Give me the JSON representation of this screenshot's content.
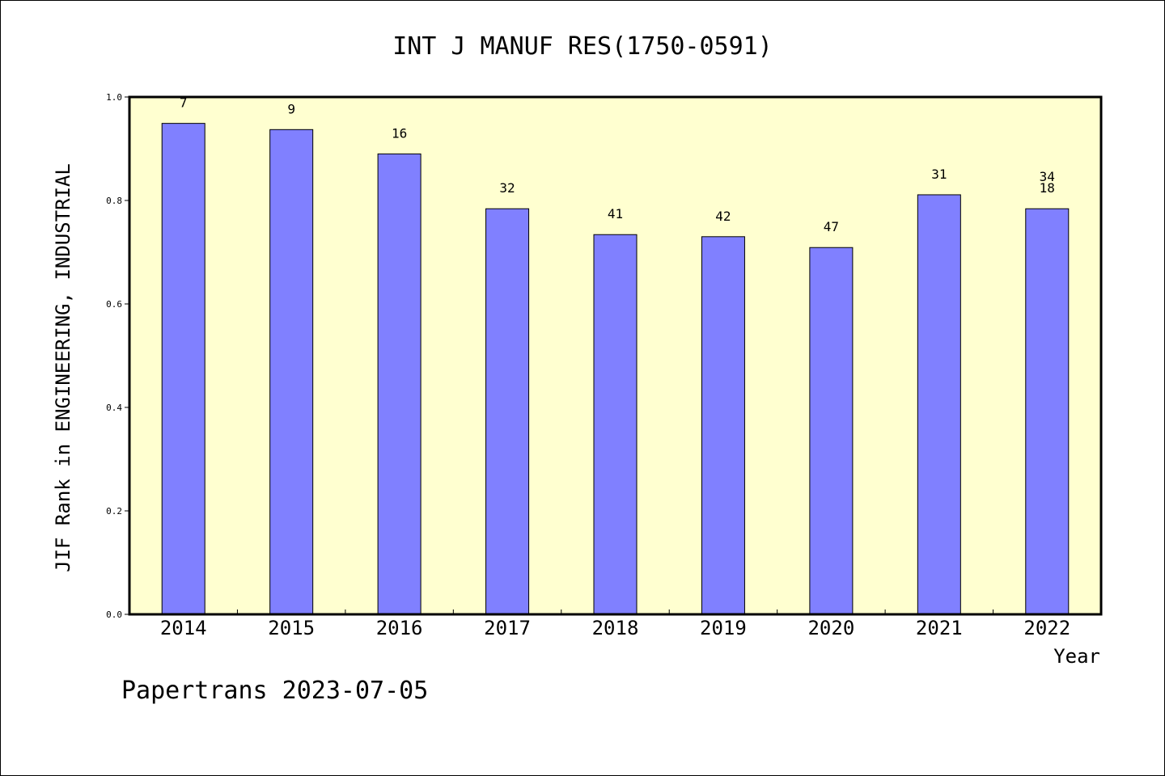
{
  "chart_data": {
    "type": "bar",
    "title": "INT J MANUF RES(1750-0591)",
    "xlabel": "Year",
    "ylabel": "JIF Rank in ENGINEERING, INDUSTRIAL",
    "ylim": [
      0,
      1.0
    ],
    "yticks": [
      "0.0",
      "0.2",
      "0.4",
      "0.6",
      "0.8",
      "1.0"
    ],
    "categories": [
      "2014",
      "2015",
      "2016",
      "2017",
      "2018",
      "2019",
      "2020",
      "2021",
      "2022"
    ],
    "values": [
      0.949,
      0.937,
      0.89,
      0.784,
      0.734,
      0.73,
      0.709,
      0.811,
      0.784
    ],
    "data_labels": [
      "7",
      "9",
      "16",
      "32",
      "41",
      "42",
      "47",
      "31",
      "34\n18"
    ],
    "grid": false,
    "legend": "none",
    "colors": {
      "bar_fill": "#8080ff",
      "plot_background": "#ffffd0",
      "axis": "#000000"
    }
  },
  "footer": {
    "text": "Papertrans 2023-07-05"
  }
}
